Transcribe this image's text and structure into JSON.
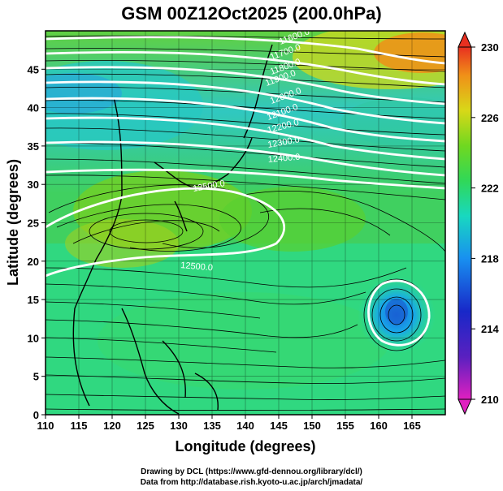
{
  "title": "GSM 00Z12Oct2025 (200.0hPa)",
  "xlabel": "Longitude (degrees)",
  "ylabel": "Latitude (degrees)",
  "x_ticks": [
    "110",
    "115",
    "120",
    "125",
    "130",
    "135",
    "140",
    "145",
    "150",
    "155",
    "160",
    "165"
  ],
  "y_ticks": [
    "0",
    "5",
    "10",
    "15",
    "20",
    "25",
    "30",
    "35",
    "40",
    "45"
  ],
  "x_range": [
    110,
    170
  ],
  "y_range": [
    0,
    50
  ],
  "colorbar": {
    "ticks": [
      "210",
      "214",
      "218",
      "222",
      "226",
      "230"
    ],
    "range": [
      210,
      230
    ]
  },
  "contours": [
    {
      "label": "11600.0"
    },
    {
      "label": "11700.0"
    },
    {
      "label": "11800.0"
    },
    {
      "label": "11900.0"
    },
    {
      "label": "12000.0"
    },
    {
      "label": "12100.0"
    },
    {
      "label": "12200.0"
    },
    {
      "label": "12300.0"
    },
    {
      "label": "12400.0"
    },
    {
      "label": "12500.0"
    },
    {
      "label": "12500.0"
    }
  ],
  "credits": [
    "Drawing by DCL (https://www.gfd-dennou.org/library/dcl/)",
    "Data from http://database.rish.kyoto-u.ac.jp/arch/jmadata/"
  ]
}
